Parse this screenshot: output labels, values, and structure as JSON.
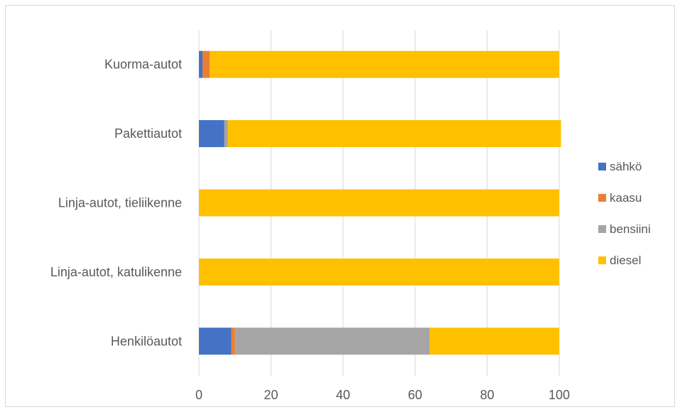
{
  "chart_data": {
    "type": "bar",
    "orientation": "horizontal",
    "stacked": true,
    "categories": [
      "Kuorma-autot",
      "Pakettiautot",
      "Linja-autot, tieliikenne",
      "Linja-autot, katulikenne",
      "Henkilöautot"
    ],
    "series": [
      {
        "name": "sähkö",
        "color": "#4472C4",
        "values": [
          1,
          7,
          0,
          0,
          9
        ]
      },
      {
        "name": "kaasu",
        "color": "#ED7D31",
        "values": [
          2,
          0,
          0,
          0,
          1
        ]
      },
      {
        "name": "bensiini",
        "color": "#A5A5A5",
        "values": [
          0,
          1,
          0,
          0,
          54
        ]
      },
      {
        "name": "diesel",
        "color": "#FFC000",
        "values": [
          97,
          92.5,
          100,
          100,
          36
        ]
      }
    ],
    "xlim": [
      0,
      100
    ],
    "x_ticks": [
      0,
      20,
      40,
      60,
      80,
      100
    ],
    "grid": true,
    "legend_position": "right",
    "title": "",
    "xlabel": "",
    "ylabel": ""
  }
}
